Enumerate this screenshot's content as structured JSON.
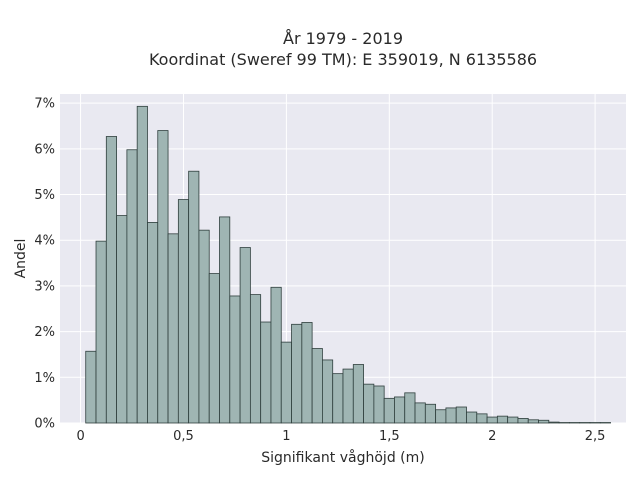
{
  "chart_data": {
    "type": "bar",
    "title": "År 1979 - 2019",
    "subtitle": "Koordinat (Sweref 99 TM): E 359019, N 6135586",
    "xlabel": "Signifikant våghöjd (m)",
    "ylabel": "Andel",
    "xlim": [
      -0.1,
      2.65
    ],
    "ylim": [
      0,
      0.072
    ],
    "x_ticks": [
      0,
      0.5,
      1,
      1.5,
      2,
      2.5
    ],
    "x_tick_labels": [
      "0",
      "0,5",
      "1",
      "1,5",
      "2",
      "2,5"
    ],
    "y_ticks": [
      0,
      0.01,
      0.02,
      0.03,
      0.04,
      0.05,
      0.06,
      0.07
    ],
    "y_tick_labels": [
      "0%",
      "1%",
      "2%",
      "3%",
      "4%",
      "5%",
      "6%",
      "7%"
    ],
    "bin_start": 0.025,
    "bin_width": 0.05,
    "values": [
      0.0157,
      0.0398,
      0.0627,
      0.0454,
      0.0598,
      0.0693,
      0.0439,
      0.064,
      0.0414,
      0.0489,
      0.0551,
      0.0422,
      0.0327,
      0.0451,
      0.0278,
      0.0384,
      0.0281,
      0.0221,
      0.0297,
      0.0177,
      0.0216,
      0.022,
      0.0163,
      0.0138,
      0.0108,
      0.0118,
      0.0128,
      0.0085,
      0.0081,
      0.0054,
      0.0057,
      0.0066,
      0.0044,
      0.0041,
      0.0029,
      0.0033,
      0.0035,
      0.0024,
      0.002,
      0.0013,
      0.0015,
      0.0013,
      0.001,
      0.0007,
      0.0006,
      0.0002,
      0.0001,
      0.0001,
      0.0001,
      0.0001,
      0.0001
    ],
    "grid": true,
    "colors": {
      "bar_fill": "#9fb5b3",
      "bar_stroke": "#2f3f3d",
      "plot_bg": "#e9e9f1",
      "grid": "#ffffff"
    }
  }
}
